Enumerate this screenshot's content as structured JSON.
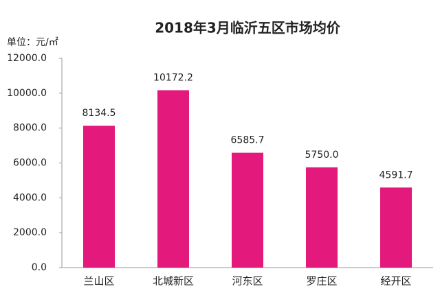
{
  "chart_data": {
    "type": "bar",
    "title": "2018年3月临沂五区市场均价",
    "unit_label": "单位：元/㎡",
    "categories": [
      "兰山区",
      "北城新区",
      "河东区",
      "罗庄区",
      "经开区"
    ],
    "values": [
      8134.5,
      10172.2,
      6585.7,
      5750.0,
      4591.7
    ],
    "value_labels": [
      "8134.5",
      "10172.2",
      "6585.7",
      "5750.0",
      "4591.7"
    ],
    "color": "#e3197b",
    "ylim": [
      0,
      12000
    ],
    "yticks": [
      {
        "value": 0,
        "label": "0.0"
      },
      {
        "value": 2000,
        "label": "2000.0"
      },
      {
        "value": 4000,
        "label": "4000.0"
      },
      {
        "value": 6000,
        "label": "6000.0"
      },
      {
        "value": 8000,
        "label": "8000.0"
      },
      {
        "value": 10000,
        "label": "10000.0"
      },
      {
        "value": 12000,
        "label": "12000.0"
      }
    ],
    "grid": false
  }
}
